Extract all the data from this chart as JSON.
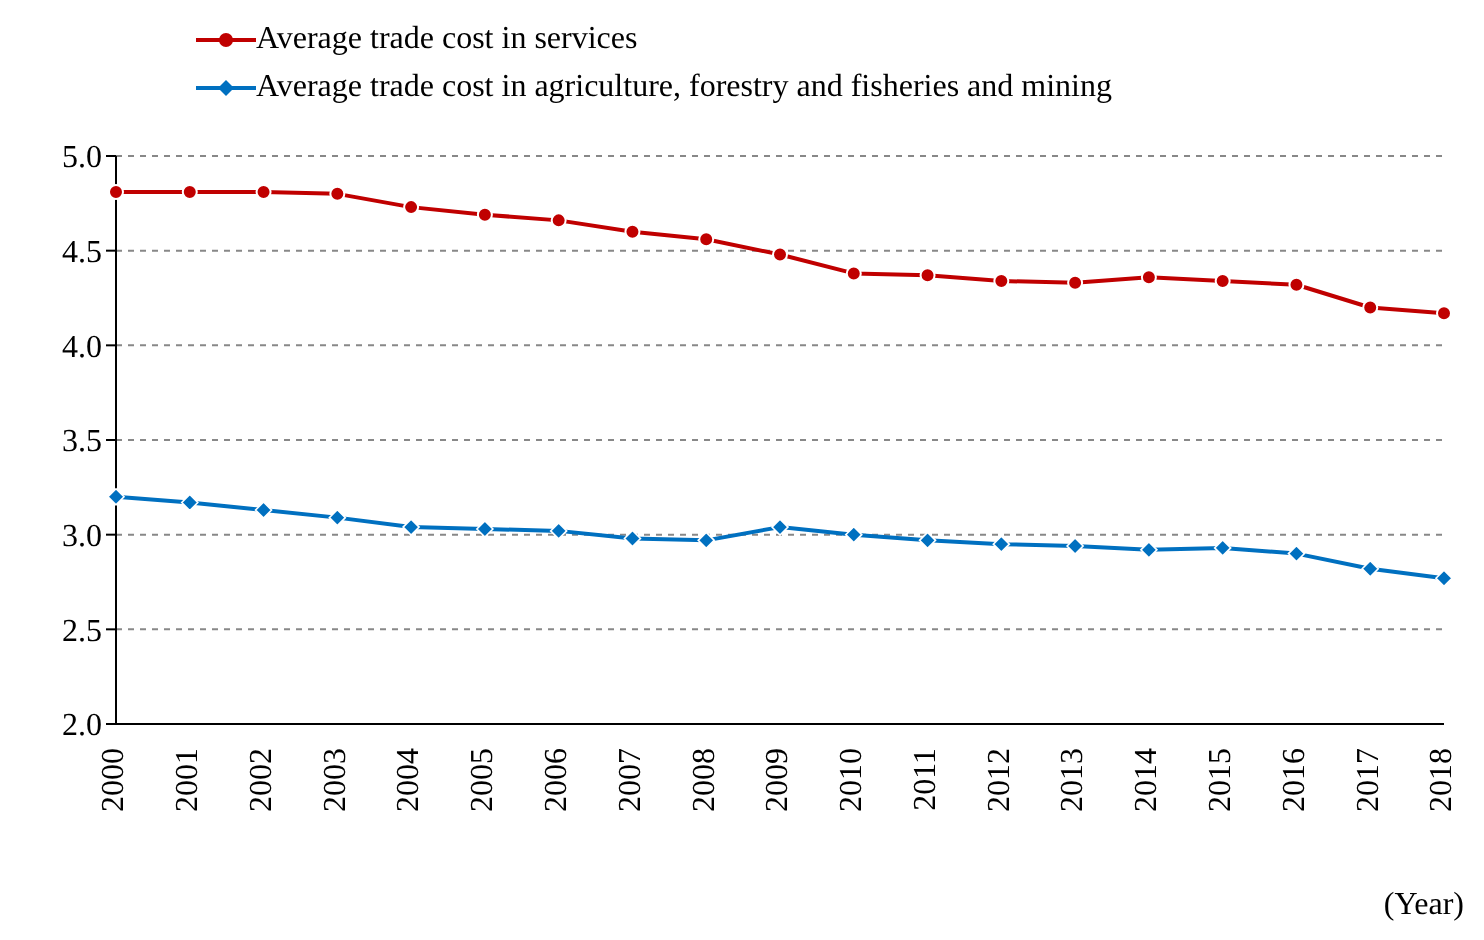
{
  "chart_data": {
    "type": "line",
    "categories": [
      "2000",
      "2001",
      "2002",
      "2003",
      "2004",
      "2005",
      "2006",
      "2007",
      "2008",
      "2009",
      "2010",
      "2011",
      "2012",
      "2013",
      "2014",
      "2015",
      "2016",
      "2017",
      "2018"
    ],
    "series": [
      {
        "name": "Average trade cost in services",
        "color": "#c00000",
        "marker": "circle",
        "values": [
          4.81,
          4.81,
          4.81,
          4.8,
          4.73,
          4.69,
          4.66,
          4.6,
          4.56,
          4.48,
          4.38,
          4.37,
          4.34,
          4.33,
          4.36,
          4.34,
          4.32,
          4.2,
          4.17
        ]
      },
      {
        "name": "Average trade cost in agriculture, forestry and fisheries and mining",
        "color": "#0070c0",
        "marker": "diamond",
        "values": [
          3.2,
          3.17,
          3.13,
          3.09,
          3.04,
          3.03,
          3.02,
          2.98,
          2.97,
          3.04,
          3.0,
          2.97,
          2.95,
          2.94,
          2.92,
          2.93,
          2.9,
          2.82,
          2.77
        ]
      }
    ],
    "xlabel": "(Year)",
    "ylim": [
      2.0,
      5.0
    ],
    "yticks": [
      {
        "value": 2.0,
        "label": "2.0"
      },
      {
        "value": 2.5,
        "label": "2.5"
      },
      {
        "value": 3.0,
        "label": "3.0"
      },
      {
        "value": 3.5,
        "label": "3.5"
      },
      {
        "value": 4.0,
        "label": "4.0"
      },
      {
        "value": 4.5,
        "label": "4.5"
      },
      {
        "value": 5.0,
        "label": "5.0"
      }
    ],
    "grid": "y",
    "legend": "top left",
    "line_style": "solid"
  }
}
